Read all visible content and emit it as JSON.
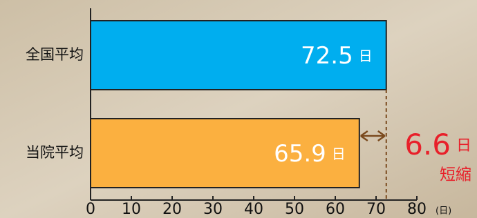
{
  "chart_data": {
    "type": "hbar",
    "categories": [
      "全国平均",
      "当院平均"
    ],
    "values": [
      72.5,
      65.9
    ],
    "colors": [
      "#00aeef",
      "#fbb040"
    ],
    "value_unit": "日",
    "xlim": [
      0,
      80
    ],
    "xticks": [
      0,
      10,
      20,
      30,
      40,
      50,
      60,
      70,
      80
    ],
    "x_unit": "(日)",
    "annotation": {
      "value": 6.6,
      "unit": "日",
      "label": "短縮",
      "color": "#e8202a"
    }
  }
}
